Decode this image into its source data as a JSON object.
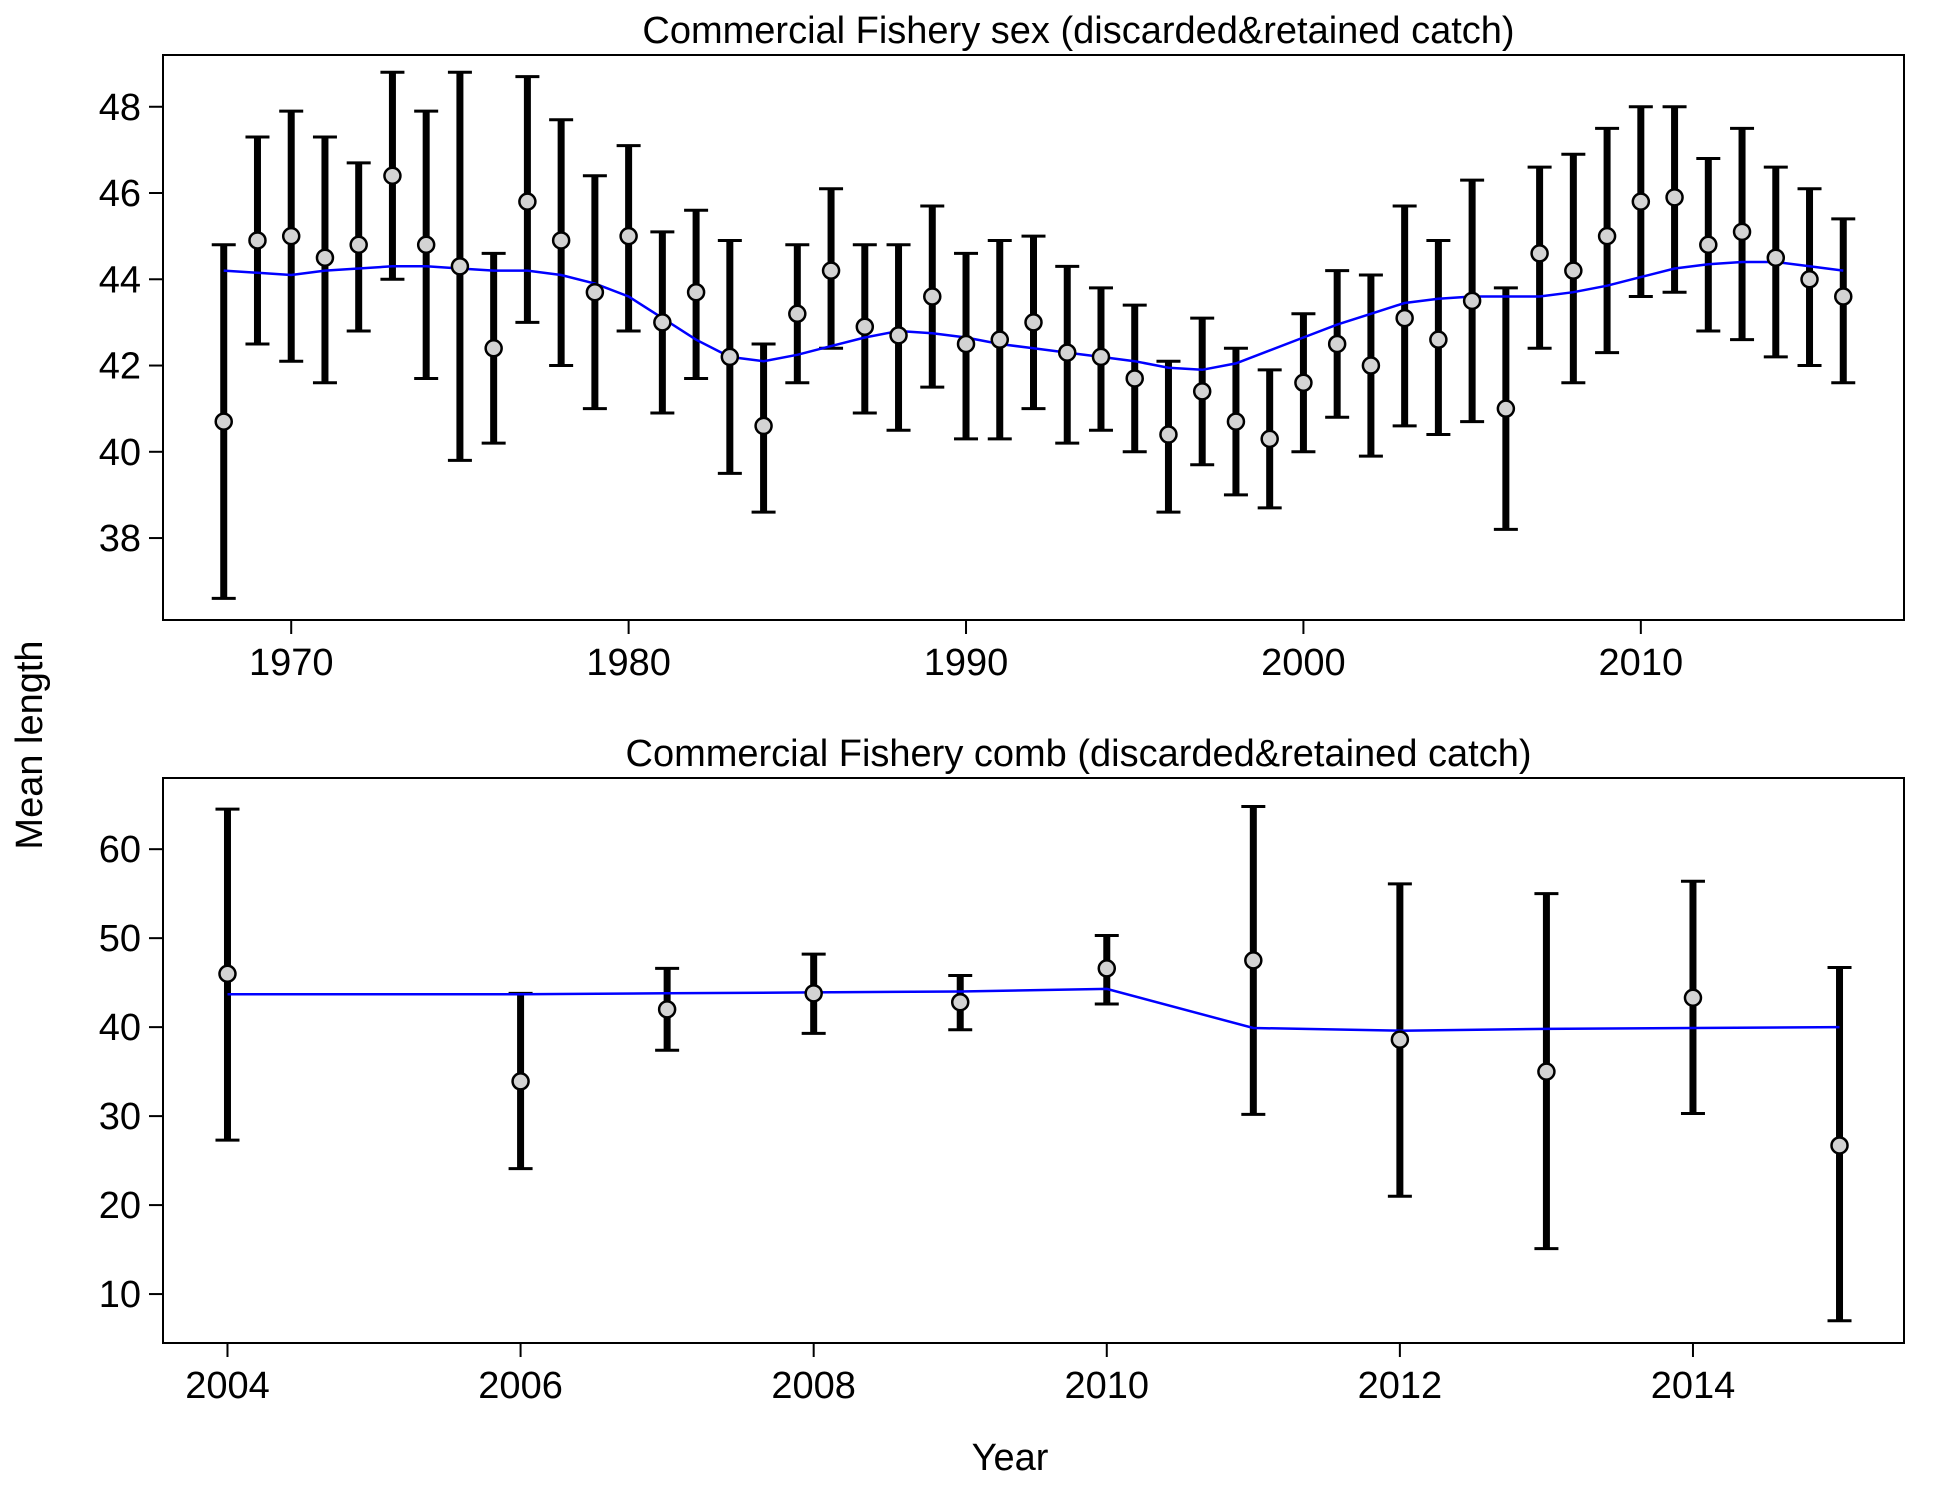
{
  "figure": {
    "ylabel": "Mean length",
    "xlabel": "Year"
  },
  "chart_data": [
    {
      "type": "scatter",
      "title": "Commercial Fishery sex (discarded&retained catch)",
      "xlabel": "",
      "ylabel": "Mean length",
      "xlim": [
        1966.2,
        2017.8
      ],
      "ylim": [
        36.1,
        49.2
      ],
      "xticks": [
        1970,
        1980,
        1990,
        2000,
        2010
      ],
      "yticks": [
        38,
        40,
        42,
        44,
        46,
        48
      ],
      "grid": false,
      "colors": {
        "points_fill": "#d3d3d3",
        "points_stroke": "#000000",
        "error_bars": "#000000",
        "fit_line": "#0000ff"
      },
      "series": [
        {
          "kind": "observed",
          "x": [
            1968,
            1969,
            1970,
            1971,
            1972,
            1973,
            1974,
            1975,
            1976,
            1977,
            1978,
            1979,
            1980,
            1981,
            1982,
            1983,
            1984,
            1985,
            1986,
            1987,
            1988,
            1989,
            1990,
            1991,
            1992,
            1993,
            1994,
            1995,
            1996,
            1997,
            1998,
            1999,
            2000,
            2001,
            2002,
            2003,
            2004,
            2005,
            2006,
            2007,
            2008,
            2009,
            2010,
            2011,
            2012,
            2013,
            2014,
            2015,
            2016
          ],
          "y": [
            40.7,
            44.9,
            45.0,
            44.5,
            44.8,
            46.4,
            44.8,
            44.3,
            42.4,
            45.8,
            44.9,
            43.7,
            45.0,
            43.0,
            43.7,
            42.2,
            40.6,
            43.2,
            44.2,
            42.9,
            42.7,
            43.6,
            42.5,
            42.6,
            43.0,
            42.3,
            42.2,
            41.7,
            40.4,
            41.4,
            40.7,
            40.3,
            41.6,
            42.5,
            42.0,
            43.1,
            42.6,
            43.5,
            41.0,
            44.6,
            44.2,
            45.0,
            45.8,
            45.9,
            44.8,
            45.1,
            44.5,
            44.0,
            43.6
          ],
          "lower": [
            36.6,
            42.5,
            42.1,
            41.6,
            42.8,
            44.0,
            41.7,
            39.8,
            40.2,
            43.0,
            42.0,
            41.0,
            42.8,
            40.9,
            41.7,
            39.5,
            38.6,
            41.6,
            42.4,
            40.9,
            40.5,
            41.5,
            40.3,
            40.3,
            41.0,
            40.2,
            40.5,
            40.0,
            38.6,
            39.7,
            39.0,
            38.7,
            40.0,
            40.8,
            39.9,
            40.6,
            40.4,
            40.7,
            38.2,
            42.4,
            41.6,
            42.3,
            43.6,
            43.7,
            42.8,
            42.6,
            42.2,
            42.0,
            41.6
          ],
          "upper": [
            44.8,
            47.3,
            47.9,
            47.3,
            46.7,
            48.8,
            47.9,
            48.8,
            44.6,
            48.7,
            47.7,
            46.4,
            47.1,
            45.1,
            45.6,
            44.9,
            42.5,
            44.8,
            46.1,
            44.8,
            44.8,
            45.7,
            44.6,
            44.9,
            45.0,
            44.3,
            43.8,
            43.4,
            42.1,
            43.1,
            42.4,
            41.9,
            43.2,
            44.2,
            44.1,
            45.7,
            44.9,
            46.3,
            43.8,
            46.6,
            46.9,
            47.5,
            48.0,
            48.0,
            46.8,
            47.5,
            46.6,
            46.1,
            45.4
          ]
        },
        {
          "kind": "expected",
          "x": [
            1968,
            1969,
            1970,
            1971,
            1972,
            1973,
            1974,
            1975,
            1976,
            1977,
            1978,
            1979,
            1980,
            1981,
            1982,
            1983,
            1984,
            1985,
            1986,
            1987,
            1988,
            1989,
            1990,
            1991,
            1992,
            1993,
            1994,
            1995,
            1996,
            1997,
            1998,
            1999,
            2000,
            2001,
            2002,
            2003,
            2004,
            2005,
            2006,
            2007,
            2008,
            2009,
            2010,
            2011,
            2012,
            2013,
            2014,
            2015,
            2016
          ],
          "y": [
            44.2,
            44.15,
            44.1,
            44.2,
            44.25,
            44.3,
            44.3,
            44.25,
            44.2,
            44.2,
            44.1,
            43.9,
            43.6,
            43.1,
            42.6,
            42.2,
            42.1,
            42.25,
            42.45,
            42.65,
            42.8,
            42.75,
            42.65,
            42.5,
            42.4,
            42.3,
            42.2,
            42.1,
            41.95,
            41.9,
            42.05,
            42.35,
            42.65,
            42.95,
            43.2,
            43.45,
            43.55,
            43.6,
            43.6,
            43.6,
            43.7,
            43.85,
            44.05,
            44.25,
            44.35,
            44.4,
            44.4,
            44.3,
            44.2
          ]
        }
      ]
    },
    {
      "type": "scatter",
      "title": "Commercial Fishery comb (discarded&retained catch)",
      "xlabel": "Year",
      "ylabel": "Mean length",
      "xlim": [
        2003.56,
        2015.44
      ],
      "ylim": [
        4.5,
        68
      ],
      "xticks": [
        2004,
        2006,
        2008,
        2010,
        2012,
        2014
      ],
      "yticks": [
        10,
        20,
        30,
        40,
        50,
        60
      ],
      "grid": false,
      "colors": {
        "points_fill": "#d3d3d3",
        "points_stroke": "#000000",
        "error_bars": "#000000",
        "fit_line": "#0000ff"
      },
      "series": [
        {
          "kind": "observed",
          "x": [
            2004,
            2006,
            2007,
            2008,
            2009,
            2010,
            2011,
            2012,
            2013,
            2014,
            2015
          ],
          "y": [
            46.0,
            33.9,
            42.0,
            43.8,
            42.8,
            46.6,
            47.5,
            38.6,
            35.0,
            43.3,
            26.7
          ],
          "lower": [
            27.3,
            24.1,
            37.4,
            39.3,
            39.7,
            42.6,
            30.2,
            21.0,
            15.1,
            30.3,
            7.0
          ],
          "upper": [
            64.5,
            43.8,
            46.6,
            48.2,
            45.8,
            50.3,
            64.8,
            56.1,
            55.0,
            56.4,
            46.7
          ]
        },
        {
          "kind": "expected",
          "x": [
            2004,
            2006,
            2007,
            2008,
            2009,
            2010,
            2011,
            2012,
            2013,
            2014,
            2015
          ],
          "y": [
            43.7,
            43.7,
            43.8,
            43.9,
            44.0,
            44.3,
            39.9,
            39.6,
            39.8,
            39.9,
            40.0
          ]
        }
      ]
    }
  ]
}
